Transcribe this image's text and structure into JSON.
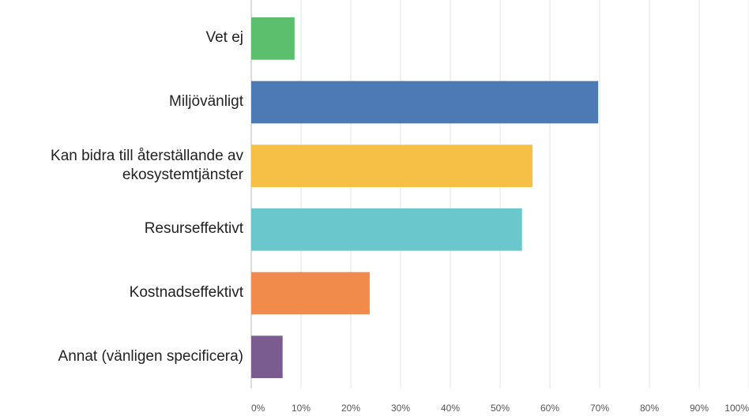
{
  "chart_data": {
    "type": "barh",
    "categories": [
      "Vet ej",
      "Miljövänligt",
      "Kan bidra till återställande av ekosystemtjänster",
      "Resurseffektivt",
      "Kostnadseffektivt",
      "Annat (vänligen specificera)"
    ],
    "values": [
      8.7,
      69.7,
      56.5,
      54.4,
      23.8,
      6.3
    ],
    "colors": [
      "#5bbf6e",
      "#4d7ab5",
      "#f6bf45",
      "#6ac8cc",
      "#f08b4c",
      "#7b5c90"
    ],
    "xlim": [
      0,
      100
    ],
    "xticks": [
      {
        "value": 0,
        "label": "0%"
      },
      {
        "value": 10,
        "label": "10%"
      },
      {
        "value": 20,
        "label": "20%"
      },
      {
        "value": 30,
        "label": "30%"
      },
      {
        "value": 40,
        "label": "40%"
      },
      {
        "value": 50,
        "label": "50%"
      },
      {
        "value": 60,
        "label": "60%"
      },
      {
        "value": 70,
        "label": "70%"
      },
      {
        "value": 80,
        "label": "80%"
      },
      {
        "value": 90,
        "label": "90%"
      },
      {
        "value": 100,
        "label": "100%"
      }
    ],
    "grid": true
  }
}
